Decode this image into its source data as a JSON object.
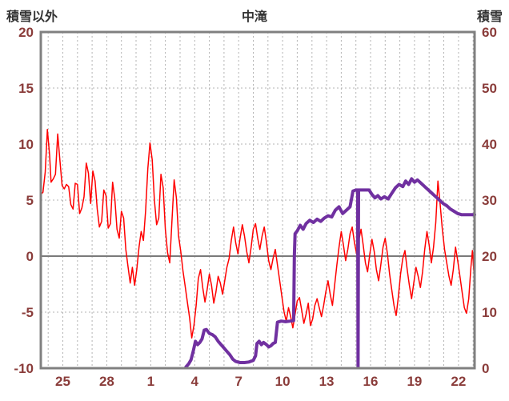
{
  "header": {
    "left_axis_title": "積雪以外",
    "center_title": "中滝",
    "right_axis_title": "積雪"
  },
  "colors": {
    "background": "#ffffff",
    "plot_border": "#808080",
    "grid": "#b3b3b3",
    "zero_line": "#7a7a7a",
    "axis_number": "#8a3c3a",
    "title_text": "#333333",
    "temp_line": "#ff0000",
    "snow_line": "#7030a0"
  },
  "chart_data": {
    "type": "line",
    "title": "中滝",
    "x_range": [
      0,
      29.6
    ],
    "x_ticks": {
      "positions": [
        1.5,
        4.5,
        7.5,
        10.5,
        13.5,
        16.5,
        19.5,
        22.5,
        25.5,
        28.5
      ],
      "labels": [
        "25",
        "28",
        "1",
        "4",
        "7",
        "10",
        "13",
        "16",
        "19",
        "22"
      ]
    },
    "grid": {
      "x_start": 0.5,
      "x_step": 1
    },
    "y_left": {
      "label": "積雪以外",
      "range": [
        -10,
        20
      ],
      "ticks": [
        20,
        15,
        10,
        5,
        0,
        -5,
        -10
      ]
    },
    "y_right": {
      "label": "積雪",
      "range": [
        0,
        60
      ],
      "ticks": [
        60,
        50,
        40,
        30,
        20,
        10,
        0
      ]
    },
    "zero_line_left_value": 0,
    "legend": "none",
    "series": [
      {
        "name": "積雪以外",
        "axis": "left",
        "color": "#ff0000",
        "width": 1.5,
        "points": [
          [
            0,
            5.5
          ],
          [
            0.15,
            5.7
          ],
          [
            0.3,
            7.5
          ],
          [
            0.45,
            11.3
          ],
          [
            0.6,
            9
          ],
          [
            0.7,
            6.6
          ],
          [
            0.85,
            6.9
          ],
          [
            1,
            7.3
          ],
          [
            1.15,
            10.9
          ],
          [
            1.3,
            8.6
          ],
          [
            1.45,
            6.3
          ],
          [
            1.6,
            6
          ],
          [
            1.75,
            6.4
          ],
          [
            1.9,
            6.2
          ],
          [
            2.05,
            4.6
          ],
          [
            2.2,
            4.2
          ],
          [
            2.35,
            6.5
          ],
          [
            2.5,
            6.4
          ],
          [
            2.65,
            3.8
          ],
          [
            2.8,
            4.3
          ],
          [
            2.95,
            5.3
          ],
          [
            3.1,
            8.3
          ],
          [
            3.25,
            7.4
          ],
          [
            3.4,
            4.7
          ],
          [
            3.55,
            7.6
          ],
          [
            3.7,
            6.7
          ],
          [
            3.85,
            4.2
          ],
          [
            4,
            2.6
          ],
          [
            4.15,
            3.1
          ],
          [
            4.3,
            5.9
          ],
          [
            4.45,
            5.4
          ],
          [
            4.6,
            2.5
          ],
          [
            4.75,
            2.9
          ],
          [
            4.9,
            6.6
          ],
          [
            5.05,
            5.1
          ],
          [
            5.2,
            2.4
          ],
          [
            5.35,
            1.6
          ],
          [
            5.5,
            4
          ],
          [
            5.65,
            3.4
          ],
          [
            5.8,
            0.6
          ],
          [
            5.95,
            -0.9
          ],
          [
            6.1,
            -2.4
          ],
          [
            6.25,
            -1
          ],
          [
            6.4,
            -2.6
          ],
          [
            6.55,
            -1.2
          ],
          [
            6.7,
            0.8
          ],
          [
            6.85,
            2.2
          ],
          [
            7,
            1.4
          ],
          [
            7.15,
            4
          ],
          [
            7.3,
            7.8
          ],
          [
            7.45,
            10.1
          ],
          [
            7.6,
            8.6
          ],
          [
            7.75,
            5
          ],
          [
            7.9,
            2.8
          ],
          [
            8.05,
            3.4
          ],
          [
            8.2,
            7.3
          ],
          [
            8.35,
            6.1
          ],
          [
            8.5,
            2.4
          ],
          [
            8.65,
            0.3
          ],
          [
            8.8,
            -0.6
          ],
          [
            8.95,
            3.2
          ],
          [
            9.1,
            6.8
          ],
          [
            9.25,
            5.2
          ],
          [
            9.4,
            1.8
          ],
          [
            9.55,
            0.4
          ],
          [
            9.7,
            -1.3
          ],
          [
            9.85,
            -2.7
          ],
          [
            10,
            -4.1
          ],
          [
            10.15,
            -5.5
          ],
          [
            10.3,
            -7.3
          ],
          [
            10.45,
            -6.2
          ],
          [
            10.6,
            -4.4
          ],
          [
            10.75,
            -2
          ],
          [
            10.9,
            -1.2
          ],
          [
            11.05,
            -2.8
          ],
          [
            11.2,
            -4.1
          ],
          [
            11.35,
            -3
          ],
          [
            11.5,
            -1.6
          ],
          [
            11.65,
            -2.6
          ],
          [
            11.8,
            -4.2
          ],
          [
            11.95,
            -3.2
          ],
          [
            12.1,
            -1.8
          ],
          [
            12.25,
            -2.4
          ],
          [
            12.4,
            -3.4
          ],
          [
            12.55,
            -2.2
          ],
          [
            12.7,
            -1
          ],
          [
            12.85,
            -0.2
          ],
          [
            13,
            1.4
          ],
          [
            13.15,
            2.6
          ],
          [
            13.3,
            1.2
          ],
          [
            13.45,
            0.2
          ],
          [
            13.6,
            1.6
          ],
          [
            13.75,
            2.8
          ],
          [
            13.9,
            1.8
          ],
          [
            14.05,
            0.4
          ],
          [
            14.2,
            -0.6
          ],
          [
            14.35,
            0.8
          ],
          [
            14.5,
            2.4
          ],
          [
            14.65,
            2.9
          ],
          [
            14.8,
            1.6
          ],
          [
            14.95,
            0.6
          ],
          [
            15.1,
            1.8
          ],
          [
            15.25,
            2.6
          ],
          [
            15.4,
            1.2
          ],
          [
            15.55,
            -0.4
          ],
          [
            15.7,
            -1.2
          ],
          [
            15.85,
            -0.2
          ],
          [
            16,
            0.6
          ],
          [
            16.15,
            -0.8
          ],
          [
            16.3,
            -2.2
          ],
          [
            16.45,
            -3.6
          ],
          [
            16.6,
            -5
          ],
          [
            16.75,
            -5.8
          ],
          [
            16.9,
            -4.6
          ],
          [
            17.05,
            -5.4
          ],
          [
            17.2,
            -6.4
          ],
          [
            17.35,
            -5.2
          ],
          [
            17.5,
            -4
          ],
          [
            17.65,
            -3.7
          ],
          [
            17.8,
            -4.8
          ],
          [
            17.95,
            -6
          ],
          [
            18.1,
            -5.2
          ],
          [
            18.25,
            -4.2
          ],
          [
            18.4,
            -6.2
          ],
          [
            18.55,
            -5.6
          ],
          [
            18.7,
            -4.4
          ],
          [
            18.85,
            -3.8
          ],
          [
            19,
            -4.6
          ],
          [
            19.15,
            -5.4
          ],
          [
            19.3,
            -4.4
          ],
          [
            19.45,
            -3.2
          ],
          [
            19.6,
            -2.2
          ],
          [
            19.75,
            -3.4
          ],
          [
            19.9,
            -4.4
          ],
          [
            20.05,
            -2.6
          ],
          [
            20.2,
            -0.8
          ],
          [
            20.35,
            0.8
          ],
          [
            20.5,
            2.2
          ],
          [
            20.65,
            1
          ],
          [
            20.8,
            -0.4
          ],
          [
            20.95,
            0.6
          ],
          [
            21.1,
            2
          ],
          [
            21.25,
            2.6
          ],
          [
            21.4,
            1.2
          ],
          [
            21.55,
            0.2
          ],
          [
            21.7,
            1.4
          ],
          [
            21.85,
            2.4
          ],
          [
            22,
            1
          ],
          [
            22.15,
            -0.6
          ],
          [
            22.3,
            -1.4
          ],
          [
            22.45,
            0.2
          ],
          [
            22.6,
            1.5
          ],
          [
            22.75,
            0.4
          ],
          [
            22.9,
            -1.2
          ],
          [
            23.05,
            -2.2
          ],
          [
            23.2,
            -0.8
          ],
          [
            23.35,
            0.8
          ],
          [
            23.5,
            1.6
          ],
          [
            23.65,
            0.2
          ],
          [
            23.8,
            -1.6
          ],
          [
            23.95,
            -3
          ],
          [
            24.1,
            -4.4
          ],
          [
            24.25,
            -5.3
          ],
          [
            24.4,
            -3.6
          ],
          [
            24.55,
            -1.6
          ],
          [
            24.7,
            -0.2
          ],
          [
            24.85,
            0.5
          ],
          [
            25,
            -1.2
          ],
          [
            25.15,
            -2.6
          ],
          [
            25.3,
            -3.8
          ],
          [
            25.45,
            -2.4
          ],
          [
            25.6,
            -1
          ],
          [
            25.75,
            -1.8
          ],
          [
            25.9,
            -2.8
          ],
          [
            26.05,
            -1.4
          ],
          [
            26.2,
            0.6
          ],
          [
            26.35,
            2.2
          ],
          [
            26.5,
            1
          ],
          [
            26.65,
            -0.6
          ],
          [
            26.8,
            0.8
          ],
          [
            26.95,
            3
          ],
          [
            27.1,
            6.7
          ],
          [
            27.25,
            4.6
          ],
          [
            27.4,
            2.4
          ],
          [
            27.55,
            0.6
          ],
          [
            27.7,
            -0.6
          ],
          [
            27.85,
            -1.8
          ],
          [
            28,
            -2.6
          ],
          [
            28.15,
            -1.2
          ],
          [
            28.3,
            0.8
          ],
          [
            28.45,
            -0.4
          ],
          [
            28.6,
            -1.8
          ],
          [
            28.75,
            -3.2
          ],
          [
            28.9,
            -4.6
          ],
          [
            29.05,
            -5.1
          ],
          [
            29.2,
            -3.8
          ],
          [
            29.35,
            -1
          ],
          [
            29.45,
            0.5
          ],
          [
            29.6,
            -2.3
          ]
        ]
      },
      {
        "name": "積雪",
        "axis": "right",
        "color": "#7030a0",
        "width": 4,
        "points": [
          [
            9.9,
            0.2
          ],
          [
            10.1,
            0.8
          ],
          [
            10.25,
            1.5
          ],
          [
            10.4,
            3
          ],
          [
            10.55,
            4.8
          ],
          [
            10.7,
            4.2
          ],
          [
            10.85,
            4.6
          ],
          [
            11,
            5.2
          ],
          [
            11.15,
            6.8
          ],
          [
            11.3,
            6.9
          ],
          [
            11.5,
            6.2
          ],
          [
            11.7,
            6
          ],
          [
            11.9,
            5.6
          ],
          [
            12.1,
            4.8
          ],
          [
            12.3,
            4.2
          ],
          [
            12.5,
            3.6
          ],
          [
            12.7,
            3
          ],
          [
            12.9,
            2.4
          ],
          [
            13.1,
            1.6
          ],
          [
            13.3,
            1.2
          ],
          [
            13.6,
            1
          ],
          [
            13.9,
            1
          ],
          [
            14.2,
            1.1
          ],
          [
            14.5,
            1.4
          ],
          [
            14.65,
            2.2
          ],
          [
            14.75,
            4.4
          ],
          [
            14.9,
            4.8
          ],
          [
            15.05,
            4.2
          ],
          [
            15.2,
            4.6
          ],
          [
            15.4,
            4.2
          ],
          [
            15.55,
            3.8
          ],
          [
            15.7,
            4
          ],
          [
            15.85,
            4.4
          ],
          [
            16,
            4.6
          ],
          [
            16.15,
            8.2
          ],
          [
            16.4,
            8.4
          ],
          [
            16.7,
            8.3
          ],
          [
            17,
            8.4
          ],
          [
            17.25,
            8.5
          ],
          [
            17.3,
            20
          ],
          [
            17.35,
            24
          ],
          [
            17.5,
            24.5
          ],
          [
            17.7,
            25.5
          ],
          [
            17.9,
            24.8
          ],
          [
            18.1,
            25.8
          ],
          [
            18.35,
            26.4
          ],
          [
            18.6,
            26
          ],
          [
            18.85,
            26.6
          ],
          [
            19.1,
            26.2
          ],
          [
            19.35,
            26.8
          ],
          [
            19.6,
            27.2
          ],
          [
            19.85,
            27
          ],
          [
            20.1,
            28.2
          ],
          [
            20.35,
            28.8
          ],
          [
            20.6,
            27.6
          ],
          [
            20.85,
            28.2
          ],
          [
            21.1,
            28.8
          ],
          [
            21.3,
            31.6
          ],
          [
            21.5,
            31.8
          ],
          [
            21.62,
            31.8
          ],
          [
            21.65,
            0.2
          ],
          [
            21.68,
            31.8
          ],
          [
            21.8,
            31.8
          ],
          [
            22.1,
            31.8
          ],
          [
            22.4,
            31.8
          ],
          [
            22.6,
            31
          ],
          [
            22.8,
            30.4
          ],
          [
            23,
            30.8
          ],
          [
            23.2,
            30.2
          ],
          [
            23.45,
            30.6
          ],
          [
            23.7,
            30.2
          ],
          [
            23.95,
            31.2
          ],
          [
            24.2,
            32.2
          ],
          [
            24.45,
            32.8
          ],
          [
            24.7,
            32.4
          ],
          [
            24.9,
            33.4
          ],
          [
            25.1,
            32.8
          ],
          [
            25.3,
            33.8
          ],
          [
            25.5,
            33.2
          ],
          [
            25.7,
            33.6
          ],
          [
            25.95,
            33
          ],
          [
            26.2,
            32.4
          ],
          [
            26.45,
            31.8
          ],
          [
            26.7,
            31.2
          ],
          [
            26.95,
            30.6
          ],
          [
            27.2,
            30
          ],
          [
            27.45,
            29.4
          ],
          [
            27.7,
            29
          ],
          [
            27.95,
            28.4
          ],
          [
            28.2,
            28
          ],
          [
            28.45,
            27.6
          ],
          [
            28.7,
            27.4
          ],
          [
            28.95,
            27.4
          ],
          [
            29.2,
            27.4
          ],
          [
            29.45,
            27.4
          ],
          [
            29.6,
            27.4
          ]
        ]
      }
    ]
  }
}
